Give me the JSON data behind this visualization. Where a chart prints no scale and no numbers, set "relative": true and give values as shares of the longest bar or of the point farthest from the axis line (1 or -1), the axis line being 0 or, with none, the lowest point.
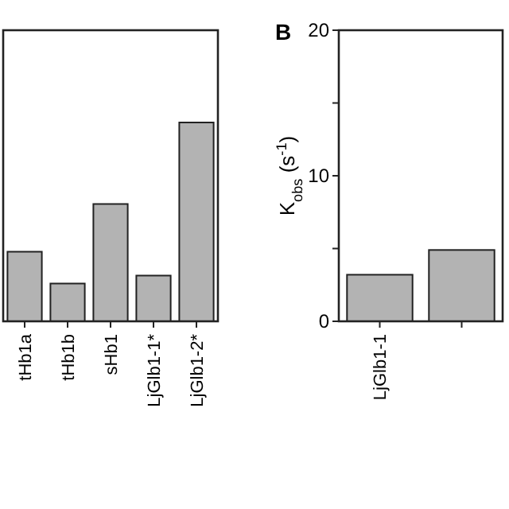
{
  "chart_data": [
    {
      "type": "bar",
      "categories": [
        "tHb1a",
        "tHb1b",
        "sHb1",
        "LjGlb1-1*",
        "LjGlb1-2*"
      ],
      "values": [
        0.35,
        0.19,
        0.59,
        0.23,
        1
      ],
      "color": "#b3b3b3",
      "relative": true
    },
    {
      "type": "bar",
      "title": "B",
      "ylabel": "K$_{obs}$ (s$^{-1}$)",
      "categories": [
        "LjGlb1-1",
        null
      ],
      "values": [
        3.2,
        4.9
      ],
      "color": "#b3b3b3",
      "ylim": [
        0,
        20
      ],
      "yticks": [
        0,
        {
          "value": 5,
          "label": null
        },
        10,
        {
          "value": 15,
          "label": null
        },
        20
      ]
    }
  ]
}
